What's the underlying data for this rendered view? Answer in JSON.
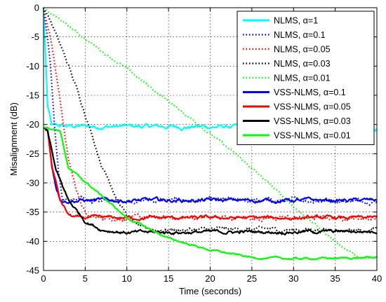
{
  "chart_data": {
    "type": "line",
    "title": "",
    "xlabel": "Time (seconds)",
    "ylabel": "Misalignment (dB)",
    "xlim": [
      0,
      40
    ],
    "ylim": [
      -45,
      0
    ],
    "xticks": [
      0,
      5,
      10,
      15,
      20,
      25,
      30,
      35,
      40
    ],
    "yticks": [
      0,
      -5,
      -10,
      -15,
      -20,
      -25,
      -30,
      -35,
      -40,
      -45
    ],
    "grid": true,
    "legend_position": "top-right",
    "series": [
      {
        "name": "NLMS, α=1",
        "color": "#00ffff",
        "style": "solid",
        "points": [
          [
            0,
            0
          ],
          [
            0.5,
            -17
          ],
          [
            1,
            -20.3
          ],
          [
            40,
            -20.5
          ]
        ],
        "noise": 0.45
      },
      {
        "name": "NLMS, α=0.1",
        "color": "#0000ff",
        "style": "dotted",
        "points": [
          [
            0,
            0
          ],
          [
            0.8,
            -9
          ],
          [
            1.3,
            -20
          ],
          [
            1.8,
            -28
          ],
          [
            2.3,
            -33
          ],
          [
            40,
            -33
          ]
        ],
        "noise": 0.45
      },
      {
        "name": "NLMS, α=0.05",
        "color": "#ff0000",
        "style": "dotted",
        "points": [
          [
            0,
            0
          ],
          [
            1,
            -6
          ],
          [
            2,
            -16
          ],
          [
            3,
            -26
          ],
          [
            4,
            -31.5
          ],
          [
            5,
            -35
          ],
          [
            5.5,
            -36
          ],
          [
            40,
            -36
          ]
        ],
        "noise": 0.45
      },
      {
        "name": "NLMS, α=0.03",
        "color": "#000000",
        "style": "dotted",
        "points": [
          [
            0,
            0
          ],
          [
            1,
            -2.8
          ],
          [
            3,
            -10
          ],
          [
            5,
            -18
          ],
          [
            7,
            -27
          ],
          [
            9,
            -33
          ],
          [
            10,
            -35.5
          ],
          [
            11,
            -37
          ],
          [
            12,
            -38
          ],
          [
            40,
            -38
          ]
        ],
        "noise": 0.45
      },
      {
        "name": "NLMS, α=0.01",
        "color": "#00ff00",
        "style": "dotted",
        "points": [
          [
            0,
            0
          ],
          [
            5,
            -5.3
          ],
          [
            10,
            -10.5
          ],
          [
            15,
            -16
          ],
          [
            20,
            -21.5
          ],
          [
            25,
            -27.5
          ],
          [
            30,
            -34
          ],
          [
            35,
            -40
          ],
          [
            38,
            -43
          ],
          [
            40,
            -43
          ]
        ],
        "noise": 0.25
      },
      {
        "name": "VSS-NLMS, α=0.1",
        "color": "#0000ff",
        "style": "solid",
        "points": [
          [
            0,
            -20.5
          ],
          [
            0.5,
            -21
          ],
          [
            1,
            -27
          ],
          [
            1.5,
            -30.5
          ],
          [
            2,
            -32.5
          ],
          [
            2.5,
            -33
          ],
          [
            40,
            -33
          ]
        ],
        "noise": 0.4
      },
      {
        "name": "VSS-NLMS, α=0.05",
        "color": "#ff0000",
        "style": "solid",
        "points": [
          [
            0,
            -20.5
          ],
          [
            0.5,
            -21
          ],
          [
            1,
            -27
          ],
          [
            2,
            -33
          ],
          [
            3,
            -35.5
          ],
          [
            4,
            -36
          ],
          [
            40,
            -36
          ]
        ],
        "noise": 0.35
      },
      {
        "name": "VSS-NLMS, α=0.03",
        "color": "#000000",
        "style": "solid",
        "points": [
          [
            0,
            -20.5
          ],
          [
            0.5,
            -21
          ],
          [
            1.5,
            -28
          ],
          [
            3,
            -33
          ],
          [
            5,
            -36.5
          ],
          [
            7,
            -38
          ],
          [
            10,
            -38.5
          ],
          [
            40,
            -38.3
          ]
        ],
        "noise": 0.35
      },
      {
        "name": "VSS-NLMS, α=0.01",
        "color": "#00ff00",
        "style": "solid",
        "points": [
          [
            0,
            -20.5
          ],
          [
            0.3,
            -20.5
          ],
          [
            2,
            -21
          ],
          [
            3,
            -27.5
          ],
          [
            6,
            -31
          ],
          [
            10,
            -36
          ],
          [
            15,
            -39.5
          ],
          [
            20,
            -41.5
          ],
          [
            25,
            -42.8
          ],
          [
            30,
            -43
          ],
          [
            40,
            -42.8
          ]
        ],
        "noise": 0.2
      }
    ]
  }
}
